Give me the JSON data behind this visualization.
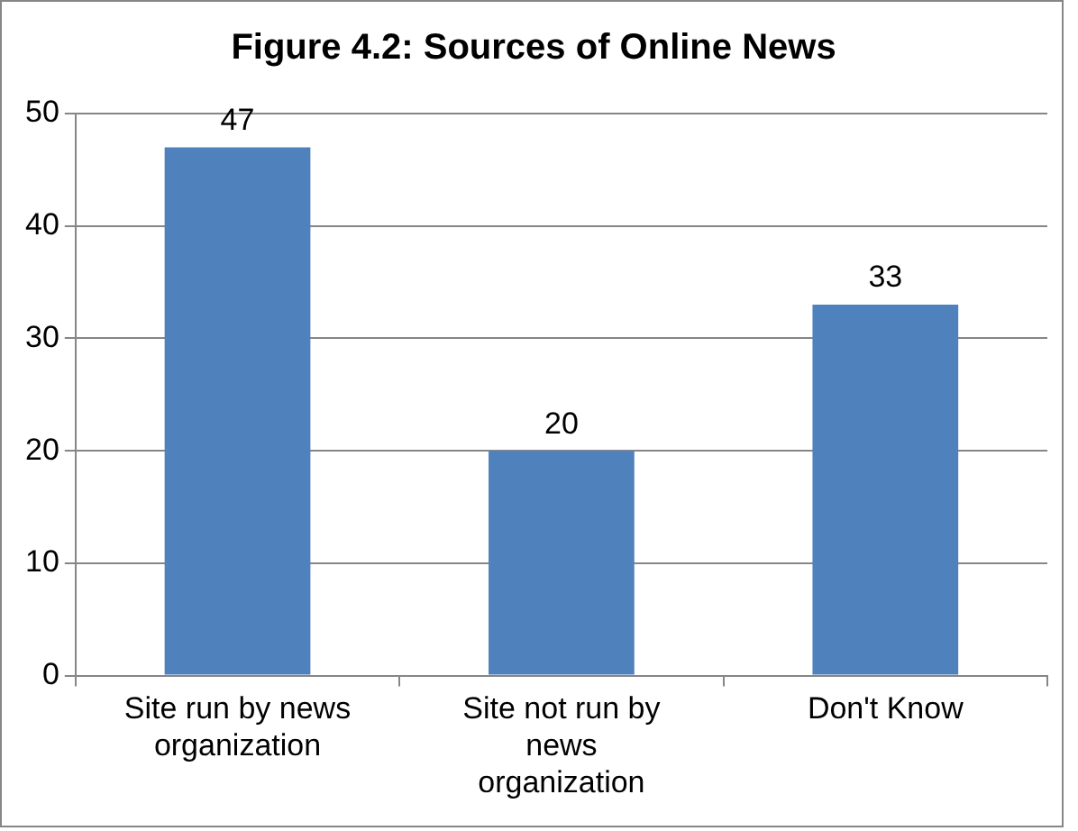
{
  "chart_data": {
    "type": "bar",
    "title": "Figure 4.2: Sources of Online News",
    "categories": [
      "Site run by news organization",
      "Site not run by news organization",
      "Don't Know"
    ],
    "values": [
      47,
      20,
      33
    ],
    "color": "#4f81bd",
    "ylim": [
      0,
      50
    ],
    "yticks": [
      0,
      10,
      20,
      30,
      40,
      50
    ],
    "grid": "y",
    "data_labels": true
  }
}
